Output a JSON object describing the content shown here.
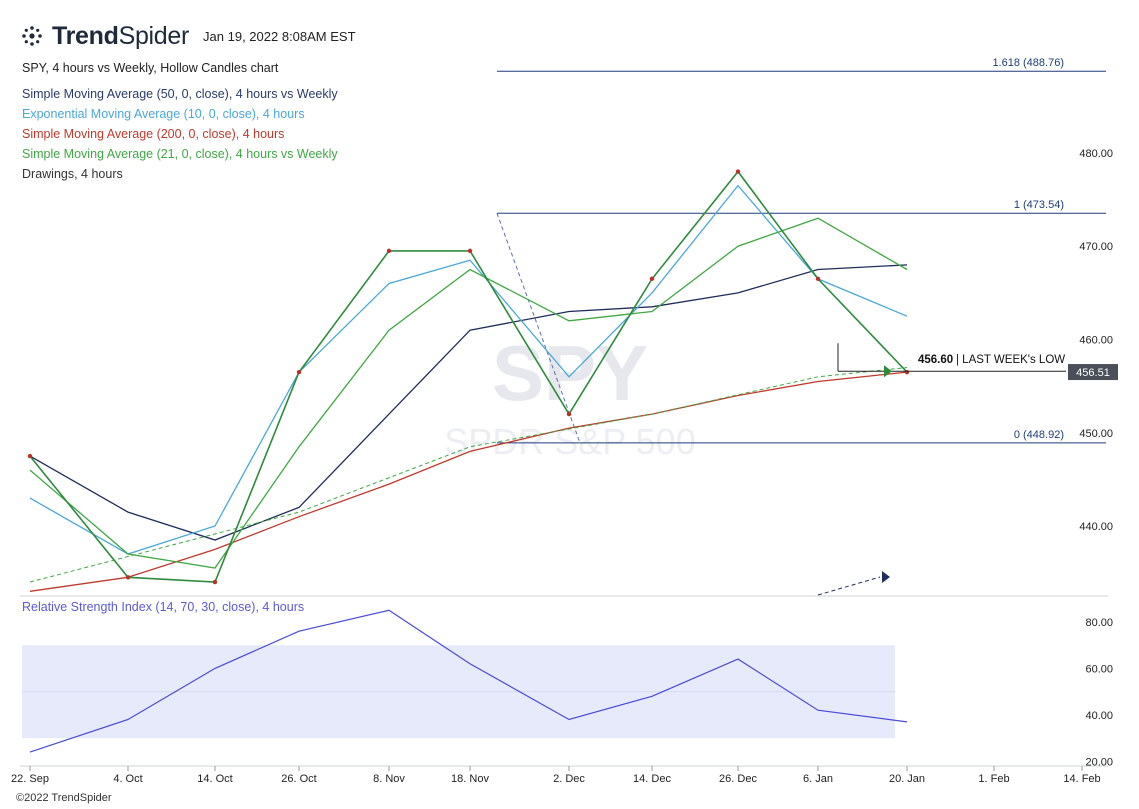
{
  "header": {
    "brand_bold": "Trend",
    "brand_light": "Spider",
    "timestamp": "Jan 19, 2022 8:08AM EST"
  },
  "legend": [
    {
      "text": "SPY, 4 hours vs Weekly, Hollow Candles chart",
      "color": "#222222"
    },
    {
      "text": "Simple Moving Average (50, 0, close), 4 hours vs Weekly",
      "color": "#2a3a6a"
    },
    {
      "text": "Exponential Moving Average (10, 0, close), 4 hours",
      "color": "#4aa8d8"
    },
    {
      "text": "Simple Moving Average (200, 0, close), 4 hours",
      "color": "#c0392b"
    },
    {
      "text": "Simple Moving Average (21, 0, close), 4 hours vs Weekly",
      "color": "#3fa843"
    },
    {
      "text": "Drawings, 4 hours",
      "color": "#333333"
    }
  ],
  "rsi_title": "Relative Strength Index (14, 70, 30, close), 4 hours",
  "copyright": "©2022 TrendSpider",
  "watermark": {
    "ticker": "SPY",
    "name": "SPDR S&P 500"
  },
  "chart_data": {
    "type": "candlestick",
    "title": "SPY, 4 hours vs Weekly, Hollow Candles chart",
    "x_ticks": [
      "22. Sep",
      "4. Oct",
      "14. Oct",
      "26. Oct",
      "8. Nov",
      "18. Nov",
      "2. Dec",
      "14. Dec",
      "26. Dec",
      "6. Jan",
      "20. Jan",
      "1. Feb",
      "14. Feb"
    ],
    "y_ticks": [
      "440.00",
      "450.00",
      "460.00",
      "470.00",
      "480.00"
    ],
    "ylim": [
      432.5,
      490.5
    ],
    "rsi_ticks": [
      "20.00",
      "40.00",
      "60.00",
      "80.00"
    ],
    "rsi_ylim": [
      18,
      86
    ],
    "rsi_band": [
      30,
      70
    ],
    "last_price": "456.51",
    "fib_levels": [
      {
        "label": "1.618 (488.76)",
        "value": 488.76
      },
      {
        "label": "1 (473.54)",
        "value": 473.54
      },
      {
        "label": "0 (448.92)",
        "value": 448.92
      }
    ],
    "annotation": {
      "value_label": "456.60",
      "text": "| LAST WEEK's LOW",
      "value": 456.6
    },
    "price_path": [
      [
        "22. Sep",
        447.5
      ],
      [
        "4. Oct",
        434.5
      ],
      [
        "14. Oct",
        434.0
      ],
      [
        "26. Oct",
        456.5
      ],
      [
        "8. Nov",
        469.5
      ],
      [
        "18. Nov",
        469.5
      ],
      [
        "2. Dec",
        452.0
      ],
      [
        "14. Dec",
        466.5
      ],
      [
        "26. Dec",
        478.0
      ],
      [
        "6. Jan",
        466.5
      ],
      [
        "20. Jan",
        456.5
      ]
    ],
    "rsi_path": [
      [
        "22. Sep",
        24
      ],
      [
        "4. Oct",
        38
      ],
      [
        "14. Oct",
        60
      ],
      [
        "26. Oct",
        76
      ],
      [
        "8. Nov",
        85
      ],
      [
        "18. Nov",
        62
      ],
      [
        "2. Dec",
        38
      ],
      [
        "14. Dec",
        48
      ],
      [
        "26. Dec",
        64
      ],
      [
        "6. Jan",
        42
      ],
      [
        "20. Jan",
        37
      ]
    ],
    "series": [
      {
        "name": "Simple Moving Average (50, 0, close), 4 hours vs Weekly",
        "color": "#1f2d5a",
        "points": [
          [
            "22. Sep",
            447.5
          ],
          [
            "4. Oct",
            441.5
          ],
          [
            "14. Oct",
            438.5
          ],
          [
            "26. Oct",
            442.0
          ],
          [
            "8. Nov",
            452.0
          ],
          [
            "18. Nov",
            461.0
          ],
          [
            "2. Dec",
            463.0
          ],
          [
            "14. Dec",
            463.5
          ],
          [
            "26. Dec",
            465.0
          ],
          [
            "6. Jan",
            467.5
          ],
          [
            "20. Jan",
            468.0
          ]
        ]
      },
      {
        "name": "Exponential Moving Average (10, 0, close), 4 hours",
        "color": "#4aa8d8",
        "points": [
          [
            "22. Sep",
            443.0
          ],
          [
            "4. Oct",
            437.0
          ],
          [
            "14. Oct",
            440.0
          ],
          [
            "26. Oct",
            456.5
          ],
          [
            "8. Nov",
            466.0
          ],
          [
            "18. Nov",
            468.5
          ],
          [
            "2. Dec",
            456.0
          ],
          [
            "14. Dec",
            465.0
          ],
          [
            "26. Dec",
            476.5
          ],
          [
            "6. Jan",
            466.5
          ],
          [
            "20. Jan",
            462.5
          ]
        ]
      },
      {
        "name": "Simple Moving Average (200, 0, close), 4 hours",
        "color": "#c0392b",
        "points": [
          [
            "22. Sep",
            433.0
          ],
          [
            "4. Oct",
            434.5
          ],
          [
            "14. Oct",
            437.5
          ],
          [
            "26. Oct",
            441.0
          ],
          [
            "8. Nov",
            444.5
          ],
          [
            "18. Nov",
            448.0
          ],
          [
            "2. Dec",
            450.5
          ],
          [
            "14. Dec",
            452.0
          ],
          [
            "26. Dec",
            454.0
          ],
          [
            "6. Jan",
            455.5
          ],
          [
            "20. Jan",
            456.5
          ]
        ]
      },
      {
        "name": "Simple Moving Average (21, 0, close), 4 hours vs Weekly",
        "color": "#3fa843",
        "points": [
          [
            "22. Sep",
            446.0
          ],
          [
            "4. Oct",
            437.0
          ],
          [
            "14. Oct",
            435.5
          ],
          [
            "26. Oct",
            448.5
          ],
          [
            "8. Nov",
            461.0
          ],
          [
            "18. Nov",
            467.5
          ],
          [
            "2. Dec",
            462.0
          ],
          [
            "14. Dec",
            463.0
          ],
          [
            "26. Dec",
            470.0
          ],
          [
            "6. Jan",
            473.0
          ],
          [
            "20. Jan",
            467.5
          ]
        ]
      }
    ]
  }
}
